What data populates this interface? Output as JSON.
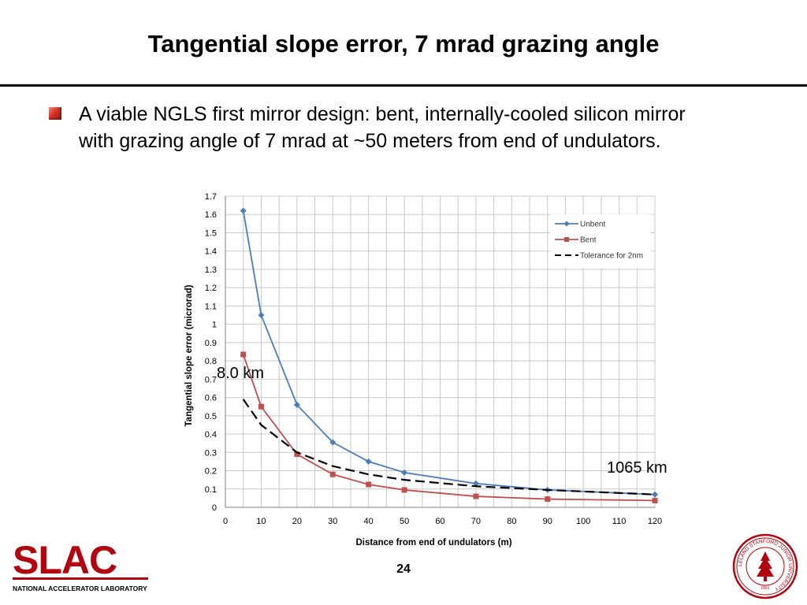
{
  "slide": {
    "title": "Tangential slope error, 7 mrad grazing angle",
    "bullet": "A viable NGLS first mirror design: bent, internally-cooled silicon mirror with grazing angle of 7 mrad at ~50 meters from end of undulators.",
    "annotation_left": "8.0 km",
    "annotation_right": "1065 km",
    "page_number": "24",
    "logo_text": "SLAC",
    "logo_subtext": "NATIONAL ACCELERATOR LABORATORY",
    "seal_text": "LELAND STANFORD JUNIOR UNIVERSITY",
    "seal_year": "1891"
  },
  "colors": {
    "unbent": "#4a7ebb",
    "bent": "#c0504d",
    "tolerance": "#000000",
    "logo_red": "#b1040e"
  },
  "chart_data": {
    "type": "line",
    "xlabel": "Distance from end of undulators (m)",
    "ylabel": "Tangential slope error (microrad)",
    "xlim": [
      0,
      120
    ],
    "ylim": [
      0,
      1.7
    ],
    "x_ticks": [
      0,
      10,
      20,
      30,
      40,
      50,
      60,
      70,
      80,
      90,
      100,
      110,
      120
    ],
    "y_ticks": [
      0,
      0.1,
      0.2,
      0.3,
      0.4,
      0.5,
      0.6,
      0.7,
      0.8,
      0.9,
      1,
      1.1,
      1.2,
      1.3,
      1.4,
      1.5,
      1.6,
      1.7
    ],
    "x_tick_labels": [
      "0",
      "10",
      "20",
      "30",
      "40",
      "50",
      "60",
      "70",
      "80",
      "90",
      "100",
      "110",
      "120"
    ],
    "y_tick_labels": [
      "0",
      "0.1",
      "0.2",
      "0.3",
      "0.4",
      "0.5",
      "0.6",
      "0.7",
      "0.8",
      "0.9",
      "1",
      "1.1",
      "1.2",
      "1.3",
      "1.4",
      "1.5",
      "1.6",
      "1.7"
    ],
    "grid": true,
    "legend_position": "top-right",
    "series": [
      {
        "name": "Unbent",
        "color": "#4a7ebb",
        "marker": "diamond",
        "x": [
          5,
          10,
          20,
          30,
          40,
          50,
          70,
          90,
          120
        ],
        "y": [
          1.62,
          1.05,
          0.56,
          0.355,
          0.25,
          0.19,
          0.13,
          0.095,
          0.07
        ]
      },
      {
        "name": "Bent",
        "color": "#c0504d",
        "marker": "square",
        "x": [
          5,
          10,
          20,
          30,
          40,
          50,
          70,
          90,
          120
        ],
        "y": [
          0.835,
          0.55,
          0.29,
          0.18,
          0.125,
          0.095,
          0.06,
          0.045,
          0.037
        ]
      },
      {
        "name": "Tolerance for 2nm",
        "color": "#000000",
        "style": "dashed",
        "x": [
          5,
          10,
          20,
          30,
          40,
          50,
          70,
          90,
          120
        ],
        "y": [
          0.59,
          0.45,
          0.3,
          0.225,
          0.18,
          0.15,
          0.115,
          0.095,
          0.07
        ]
      }
    ]
  }
}
